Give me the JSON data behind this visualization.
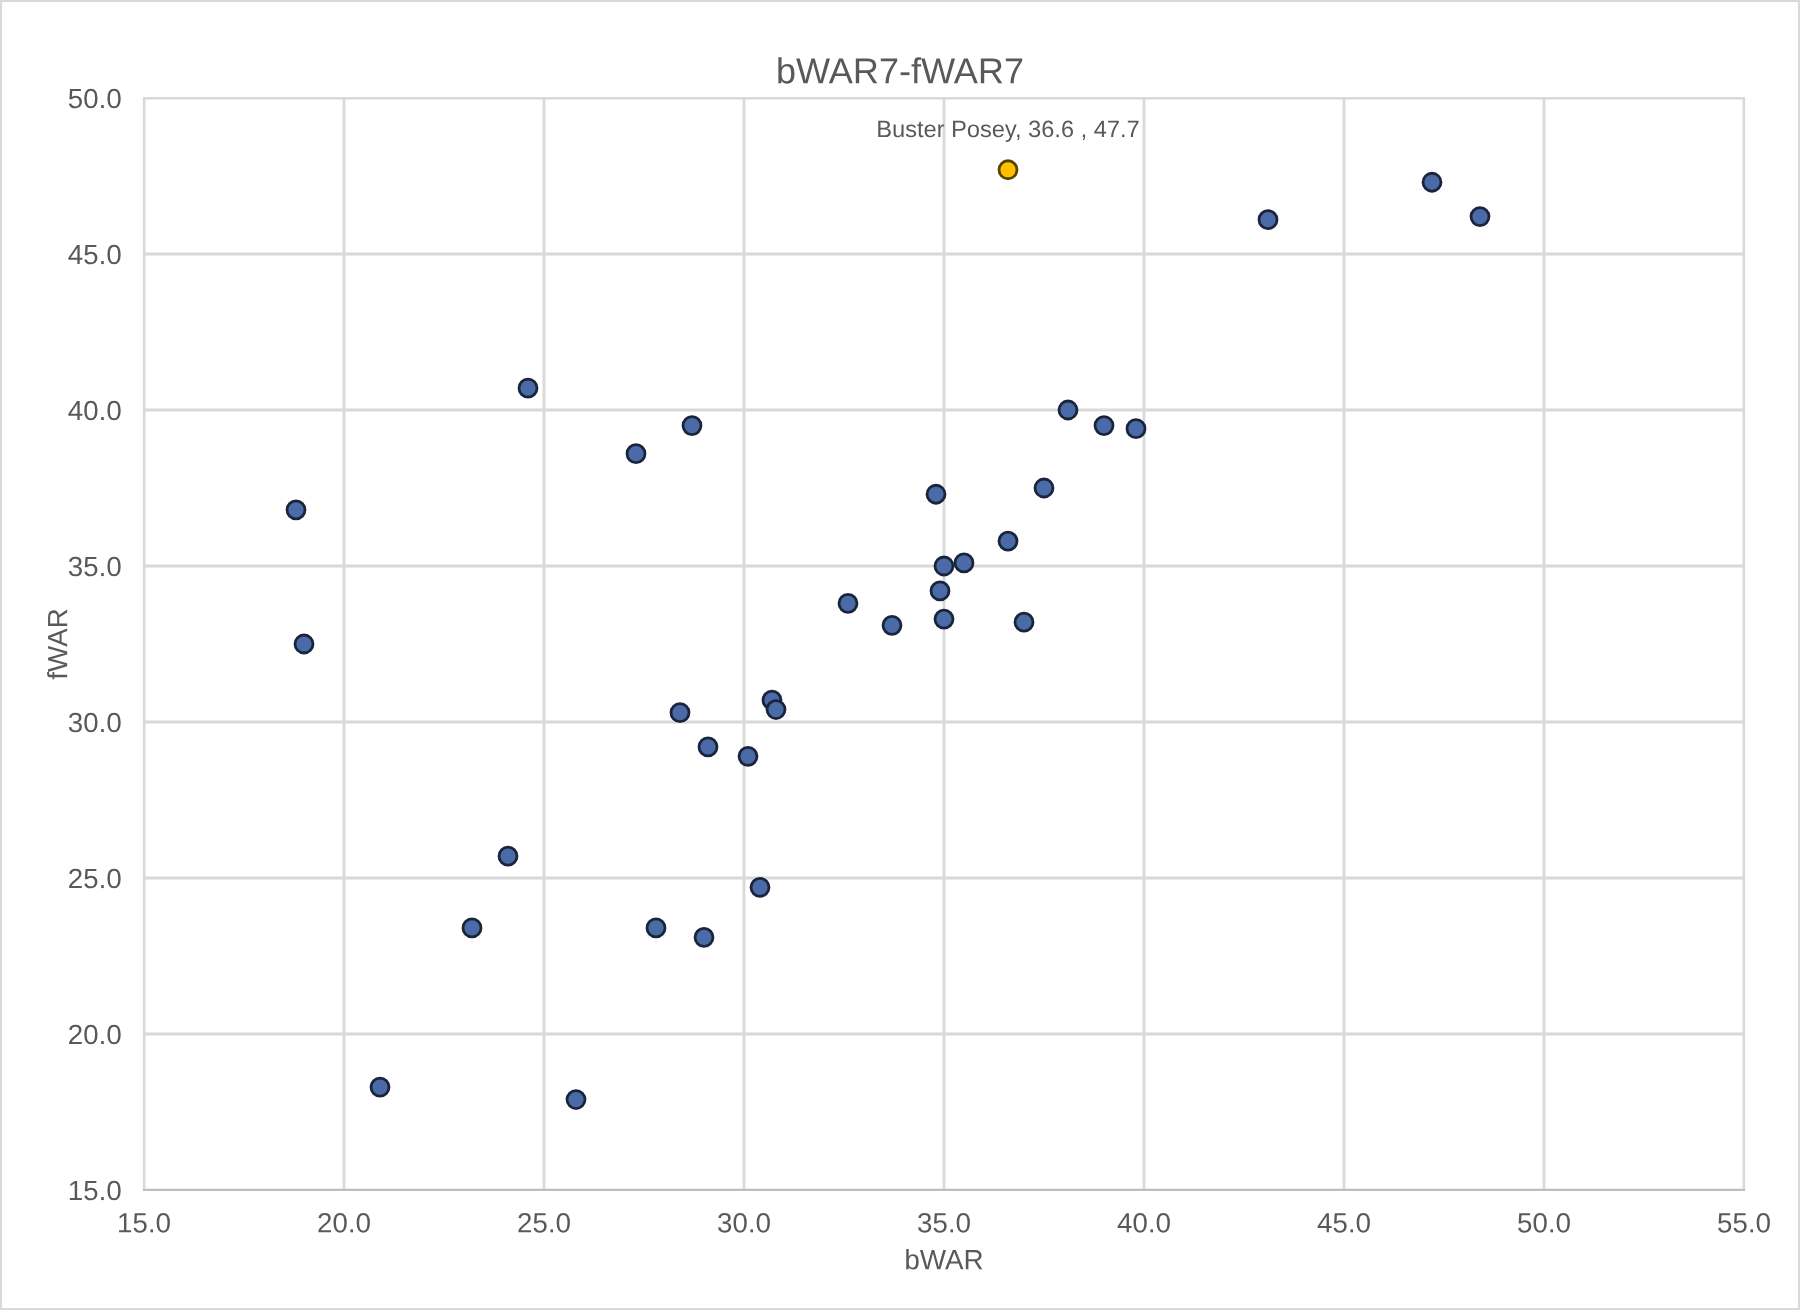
{
  "chart_data": {
    "type": "scatter",
    "title": "bWAR7-fWAR7",
    "xlabel": "bWAR",
    "ylabel": "fWAR",
    "series": [
      {
        "color": "#4a6aa8",
        "x": [
          18.8,
          19.0,
          24.6,
          27.3,
          28.7,
          32.6,
          33.7,
          43.1,
          47.2,
          48.4,
          38.1,
          39.0,
          39.8,
          34.8,
          37.5,
          36.6,
          35.0,
          35.5,
          34.9,
          35.0,
          37.0,
          28.4,
          30.7,
          30.8,
          29.1,
          30.1,
          24.1,
          30.4,
          23.2,
          27.8,
          29.0,
          20.9,
          25.8
        ],
        "values": [
          36.8,
          32.5,
          40.7,
          38.6,
          39.5,
          33.8,
          33.1,
          46.1,
          47.3,
          46.2,
          40.0,
          39.5,
          39.4,
          37.3,
          37.5,
          35.8,
          35.0,
          35.1,
          34.2,
          33.3,
          33.2,
          30.3,
          30.7,
          30.4,
          29.2,
          28.9,
          25.7,
          24.7,
          23.4,
          23.4,
          23.1,
          18.3,
          17.9
        ]
      },
      {
        "color": "#ffc000",
        "x": [
          36.6
        ],
        "values": [
          47.7
        ]
      }
    ],
    "annotations": [
      {
        "text": "Buster Posey, 36.6 , 47.7",
        "x": 36.6,
        "y": 47.7
      }
    ],
    "xlim": [
      15,
      55
    ],
    "ylim": [
      15,
      50
    ],
    "xticks": [
      {
        "value": 15,
        "label": "15.0"
      },
      {
        "value": 20,
        "label": "20.0"
      },
      {
        "value": 25,
        "label": "25.0"
      },
      {
        "value": 30,
        "label": "30.0"
      },
      {
        "value": 35,
        "label": "35.0"
      },
      {
        "value": 40,
        "label": "40.0"
      },
      {
        "value": 45,
        "label": "45.0"
      },
      {
        "value": 50,
        "label": "50.0"
      },
      {
        "value": 55,
        "label": "55.0"
      }
    ],
    "yticks": [
      {
        "value": 15,
        "label": "15.0"
      },
      {
        "value": 20,
        "label": "20.0"
      },
      {
        "value": 25,
        "label": "25.0"
      },
      {
        "value": 30,
        "label": "30.0"
      },
      {
        "value": 35,
        "label": "35.0"
      },
      {
        "value": 40,
        "label": "40.0"
      },
      {
        "value": 45,
        "label": "45.0"
      },
      {
        "value": 50,
        "label": "50.0"
      }
    ],
    "grid": true,
    "marker": "circle"
  }
}
